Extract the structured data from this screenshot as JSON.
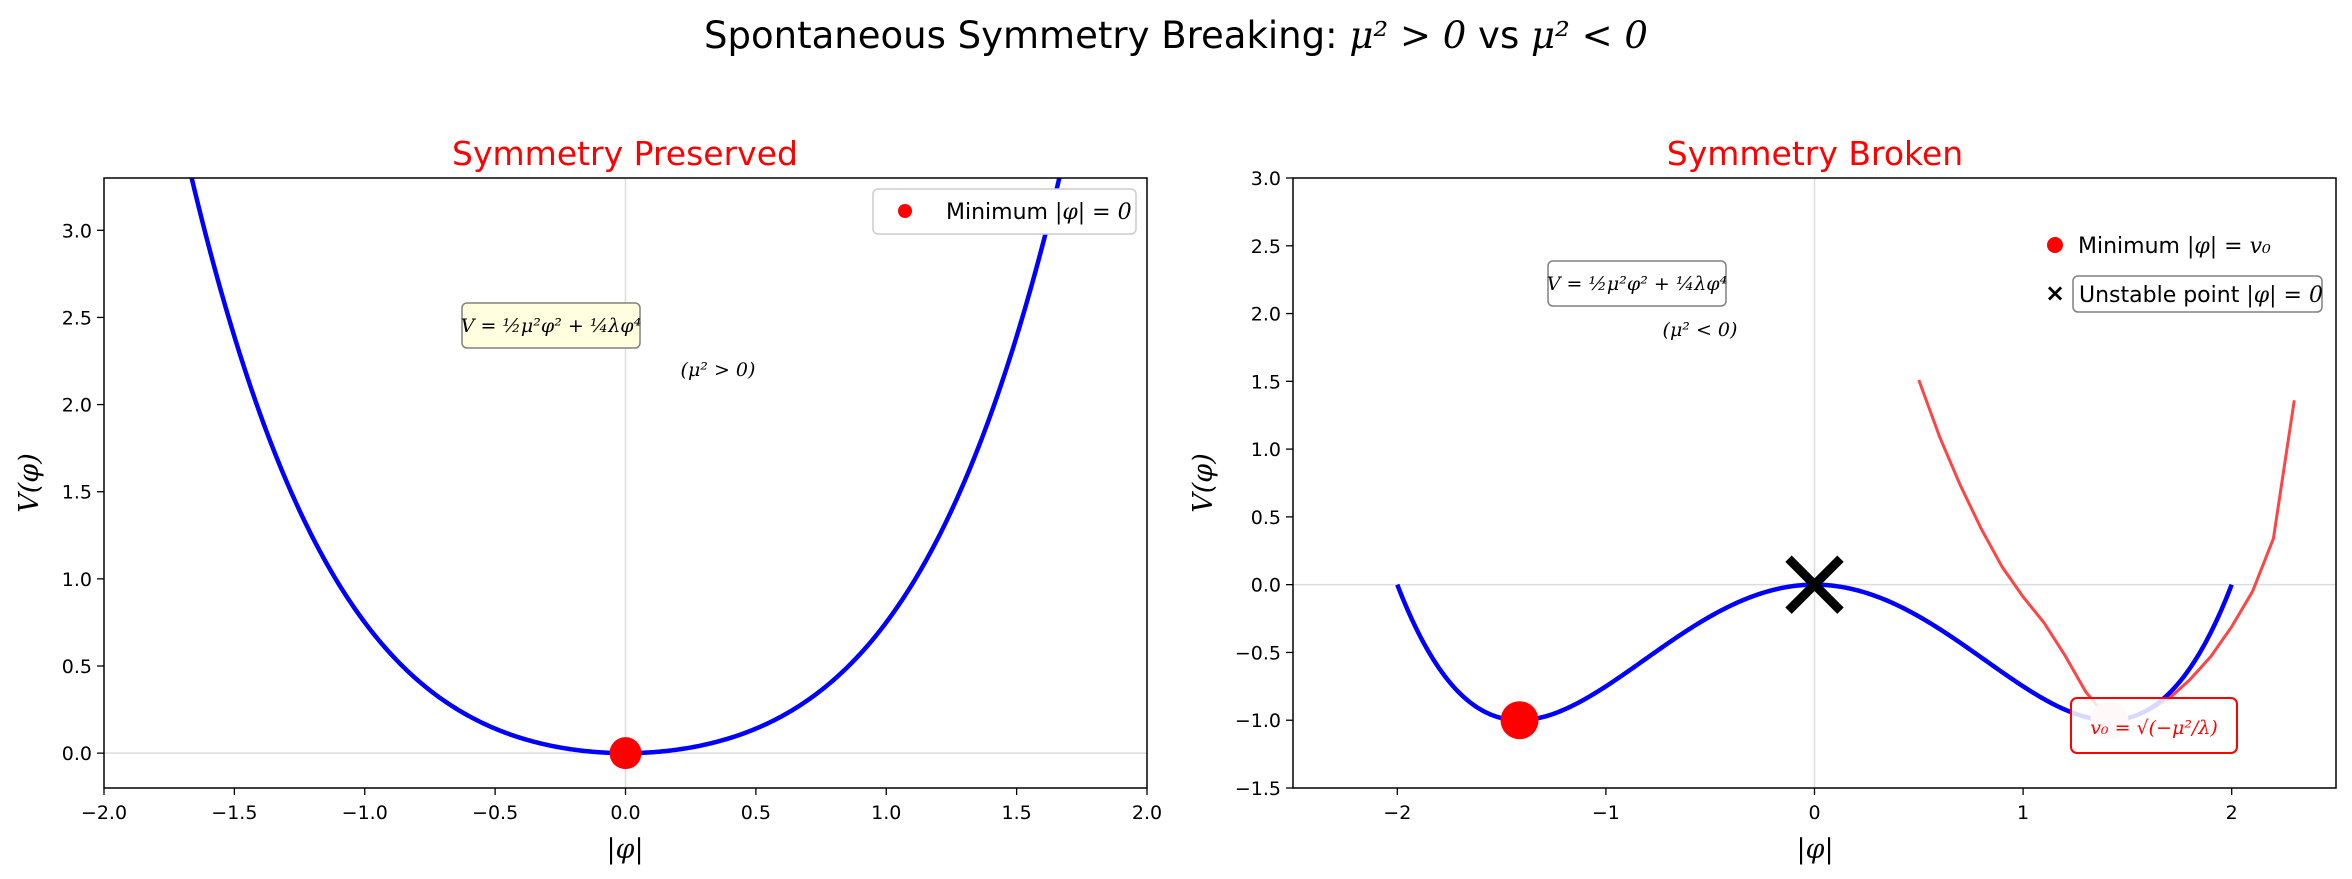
{
  "figure": {
    "suptitle_text": "Spontaneous Symmetry Breaking: ",
    "suptitle_math_a": "μ² > 0",
    "suptitle_vs": " vs ",
    "suptitle_math_b": "μ² < 0"
  },
  "chart_data": [
    {
      "type": "line",
      "title": "Symmetry Preserved",
      "xlabel": "|φ|",
      "ylabel": "V(φ)",
      "xlim": [
        -2.0,
        2.0
      ],
      "ylim": [
        -0.2,
        3.3
      ],
      "xticks": [
        -2.0,
        -1.5,
        -1.0,
        -0.5,
        0.0,
        0.5,
        1.0,
        1.5,
        2.0
      ],
      "xtick_labels": [
        "−2.0",
        "−1.5",
        "−1.0",
        "−0.5",
        "0.0",
        "0.5",
        "1.0",
        "1.5",
        "2.0"
      ],
      "yticks": [
        0.0,
        0.5,
        1.0,
        1.5,
        2.0,
        2.5,
        3.0
      ],
      "ytick_labels": [
        "0.0",
        "0.5",
        "1.0",
        "1.5",
        "2.0",
        "2.5",
        "3.0"
      ],
      "grid": "reference lines at x=0 and y=0",
      "series": [
        {
          "color": "#0000ff",
          "formula": "V = 0.5*φ² + 0.25*φ⁴",
          "x": [
            -1.7,
            -1.6,
            -1.5,
            -1.4,
            -1.3,
            -1.2,
            -1.1,
            -1.0,
            -0.9,
            -0.8,
            -0.7,
            -0.6,
            -0.5,
            -0.4,
            -0.3,
            -0.2,
            -0.1,
            0.0,
            0.1,
            0.2,
            0.3,
            0.4,
            0.5,
            0.6,
            0.7,
            0.8,
            0.9,
            1.0,
            1.1,
            1.2,
            1.3,
            1.4,
            1.5,
            1.6,
            1.7
          ],
          "y": [
            3.53,
            2.92,
            2.39,
            1.94,
            1.56,
            1.24,
            0.97,
            0.75,
            0.57,
            0.42,
            0.31,
            0.21,
            0.14,
            0.09,
            0.05,
            0.02,
            0.005,
            0.0,
            0.005,
            0.02,
            0.05,
            0.09,
            0.14,
            0.21,
            0.31,
            0.42,
            0.57,
            0.75,
            0.97,
            1.24,
            1.56,
            1.94,
            2.39,
            2.92,
            3.53
          ]
        }
      ],
      "points": [
        {
          "role": "minimum",
          "x": 0.0,
          "y": 0.0,
          "color": "#ff0000"
        }
      ],
      "legend": {
        "position": "upper right",
        "entries": [
          {
            "label": "Minimum ",
            "math": "|φ| = 0",
            "marker": "red-dot"
          }
        ]
      },
      "annotations": {
        "formula_box": "V = ½μ²φ² + ¼λφ⁴",
        "note": "(μ² > 0)"
      }
    },
    {
      "type": "line",
      "title": "Symmetry Broken",
      "xlabel": "|φ|",
      "ylabel": "V(φ)",
      "xlim": [
        -2.5,
        2.5
      ],
      "ylim": [
        -1.5,
        3.0
      ],
      "xticks": [
        -2,
        -1,
        0,
        1,
        2
      ],
      "xtick_labels": [
        "−2",
        "−1",
        "0",
        "1",
        "2"
      ],
      "yticks": [
        -1.5,
        -1.0,
        -0.5,
        0.0,
        0.5,
        1.0,
        1.5,
        2.0,
        2.5,
        3.0
      ],
      "ytick_labels": [
        "−1.5",
        "−1.0",
        "−0.5",
        "0.0",
        "0.5",
        "1.0",
        "1.5",
        "2.0",
        "2.5",
        "3.0"
      ],
      "grid": "reference lines at x=0 and y=0",
      "series": [
        {
          "color": "#0000ff",
          "formula": "V = -φ² + 0.25*φ⁴",
          "x": [
            -2.0,
            -1.9,
            -1.8,
            -1.7,
            -1.6,
            -1.5,
            -1.414,
            -1.3,
            -1.2,
            -1.1,
            -1.0,
            -0.9,
            -0.8,
            -0.7,
            -0.6,
            -0.5,
            -0.4,
            -0.3,
            -0.2,
            -0.1,
            0.0,
            0.1,
            0.2,
            0.3,
            0.4,
            0.5,
            0.6,
            0.7,
            0.8,
            0.9,
            1.0,
            1.1,
            1.2,
            1.3,
            1.414,
            1.5,
            1.6,
            1.7,
            1.8,
            1.9,
            2.0
          ],
          "y": [
            0.0,
            -0.35,
            -0.62,
            -0.8,
            -0.92,
            -0.98,
            -1.0,
            -0.98,
            -0.92,
            -0.84,
            -0.75,
            -0.65,
            -0.54,
            -0.43,
            -0.33,
            -0.23,
            -0.15,
            -0.09,
            -0.04,
            -0.01,
            0.0,
            -0.01,
            -0.04,
            -0.09,
            -0.15,
            -0.23,
            -0.33,
            -0.43,
            -0.54,
            -0.65,
            -0.75,
            -0.84,
            -0.92,
            -0.98,
            -1.0,
            -0.98,
            -0.92,
            -0.8,
            -0.62,
            -0.35,
            0.0
          ]
        },
        {
          "color": "#ff4444",
          "formula": "parabolic approximation near v0",
          "x": [
            0.5,
            0.6,
            0.7,
            0.8,
            0.9,
            1.0,
            1.1,
            1.2,
            1.3,
            1.414,
            1.5,
            1.6,
            1.7,
            1.8,
            1.9,
            2.0,
            2.1,
            2.2,
            2.3
          ],
          "y": [
            1.51,
            1.09,
            0.73,
            0.41,
            0.13,
            -0.09,
            -0.28,
            -0.52,
            -0.79,
            -1.0,
            -0.99,
            -0.93,
            -0.84,
            -0.7,
            -0.53,
            -0.31,
            -0.05,
            0.34,
            1.36
          ]
        }
      ],
      "points": [
        {
          "role": "minimum",
          "x": -1.414,
          "y": -1.0,
          "color": "#ff0000"
        },
        {
          "role": "minimum-faded",
          "x": 1.414,
          "y": -1.0,
          "color": "#ffcccc"
        },
        {
          "role": "unstable",
          "x": 0.0,
          "y": 0.0,
          "color": "#000000"
        }
      ],
      "legend": {
        "position": "upper right",
        "entries": [
          {
            "label": "Minimum ",
            "math": "|φ| = v₀",
            "marker": "red-dot"
          },
          {
            "label": "Unstable point ",
            "math": "|φ| = 0",
            "marker": "black-x"
          }
        ]
      },
      "annotations": {
        "formula_box": "V = ½μ²φ² + ¼λφ⁴",
        "note": "(μ² < 0)",
        "vev_box": "v₀ = √(−μ²/λ)"
      }
    }
  ]
}
